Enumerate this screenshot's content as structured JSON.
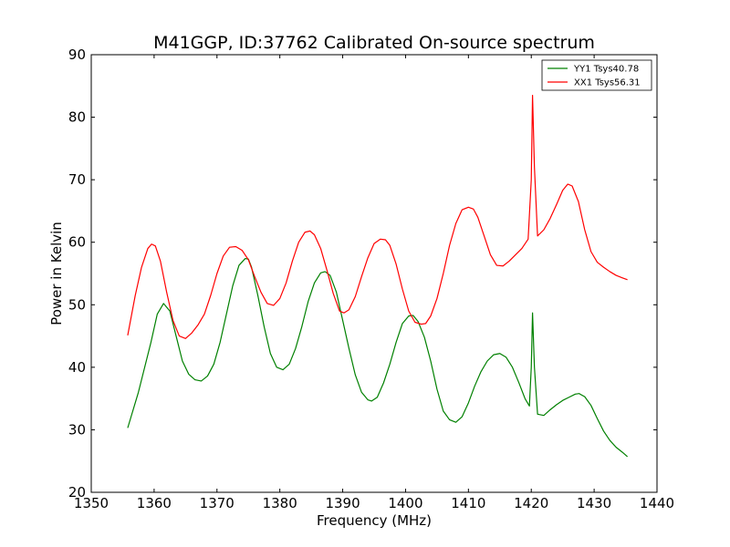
{
  "chart_data": {
    "type": "line",
    "title": "M41GGP, ID:37762 Calibrated On-source spectrum",
    "xlabel": "Frequency (MHz)",
    "ylabel": "Power in Kelvin",
    "xlim": [
      1350,
      1440
    ],
    "ylim": [
      20,
      90
    ],
    "xticks": [
      "1350",
      "1360",
      "1370",
      "1380",
      "1390",
      "1400",
      "1410",
      "1420",
      "1430",
      "1440"
    ],
    "yticks": [
      "20",
      "30",
      "40",
      "50",
      "60",
      "70",
      "80",
      "90"
    ],
    "grid": false,
    "legend_position": "top-right",
    "series": [
      {
        "name": "YY1 Tsys40.78",
        "color": "#008000",
        "x": [
          1355.8,
          1357.5,
          1359.5,
          1360.5,
          1361.5,
          1362.5,
          1363.5,
          1364.5,
          1365.5,
          1366.5,
          1367.5,
          1368.5,
          1369.5,
          1370.5,
          1371.5,
          1372.5,
          1373.5,
          1374.5,
          1375.0,
          1375.5,
          1376.5,
          1377.5,
          1378.5,
          1379.5,
          1380.5,
          1381.5,
          1382.5,
          1383.5,
          1384.5,
          1385.5,
          1386.5,
          1387.2,
          1388.0,
          1389.0,
          1390.0,
          1391.0,
          1392.0,
          1393.0,
          1394.0,
          1394.6,
          1395.5,
          1396.5,
          1397.5,
          1398.5,
          1399.5,
          1400.5,
          1401.2,
          1402.0,
          1403.0,
          1404.0,
          1405.0,
          1406.0,
          1407.0,
          1408.0,
          1409.0,
          1410.0,
          1411.0,
          1412.0,
          1413.0,
          1414.0,
          1415.0,
          1416.0,
          1417.0,
          1418.0,
          1419.0,
          1419.7,
          1420.0,
          1420.2,
          1420.5,
          1421.0,
          1422.0,
          1423.0,
          1424.0,
          1425.0,
          1426.0,
          1427.0,
          1427.6,
          1428.5,
          1429.5,
          1430.5,
          1431.5,
          1432.5,
          1433.5,
          1434.5,
          1435.3
        ],
        "values": [
          30.3,
          36.0,
          44.0,
          48.5,
          50.2,
          49.0,
          45.0,
          41.0,
          38.9,
          38.0,
          37.8,
          38.6,
          40.5,
          44.0,
          48.5,
          53.0,
          56.3,
          57.4,
          57.3,
          56.0,
          51.5,
          46.5,
          42.2,
          40.0,
          39.6,
          40.5,
          43.0,
          46.5,
          50.5,
          53.5,
          55.1,
          55.3,
          54.7,
          52.0,
          47.5,
          43.0,
          38.8,
          36.0,
          34.8,
          34.6,
          35.2,
          37.5,
          40.5,
          44.0,
          47.0,
          48.2,
          48.3,
          47.3,
          44.8,
          41.0,
          36.5,
          33.0,
          31.6,
          31.2,
          32.1,
          34.3,
          37.0,
          39.3,
          41.0,
          42.0,
          42.2,
          41.6,
          40.0,
          37.6,
          35.0,
          33.8,
          40.0,
          48.7,
          40.0,
          32.5,
          32.3,
          33.2,
          34.0,
          34.7,
          35.2,
          35.7,
          35.8,
          35.3,
          33.9,
          31.8,
          29.8,
          28.3,
          27.2,
          26.4,
          25.7
        ]
      },
      {
        "name": "XX1 Tsys56.31",
        "color": "#ff0000",
        "x": [
          1355.8,
          1357.0,
          1358.0,
          1359.0,
          1359.6,
          1360.2,
          1361.0,
          1362.0,
          1363.0,
          1364.0,
          1365.0,
          1366.0,
          1367.0,
          1368.0,
          1369.0,
          1370.0,
          1371.0,
          1372.0,
          1373.0,
          1374.0,
          1375.0,
          1376.0,
          1377.0,
          1378.0,
          1379.0,
          1380.0,
          1381.0,
          1382.0,
          1383.0,
          1384.0,
          1384.8,
          1385.5,
          1386.5,
          1387.5,
          1388.5,
          1389.5,
          1390.2,
          1391.0,
          1392.0,
          1393.0,
          1394.0,
          1395.0,
          1396.0,
          1396.8,
          1397.5,
          1398.5,
          1399.5,
          1400.5,
          1401.5,
          1402.5,
          1403.2,
          1404.0,
          1405.0,
          1406.0,
          1407.0,
          1408.0,
          1409.0,
          1410.0,
          1410.8,
          1411.5,
          1412.5,
          1413.5,
          1414.5,
          1415.5,
          1416.5,
          1417.5,
          1418.5,
          1419.5,
          1420.0,
          1420.2,
          1420.5,
          1421.0,
          1422.0,
          1423.0,
          1424.0,
          1425.0,
          1425.8,
          1426.5,
          1427.5,
          1428.5,
          1429.5,
          1430.5,
          1431.5,
          1432.5,
          1433.5,
          1434.5,
          1435.3
        ],
        "values": [
          45.1,
          51.5,
          56.0,
          59.0,
          59.7,
          59.4,
          57.0,
          52.0,
          47.5,
          45.0,
          44.6,
          45.5,
          46.8,
          48.5,
          51.5,
          55.0,
          57.8,
          59.2,
          59.3,
          58.7,
          57.2,
          54.5,
          52.0,
          50.2,
          49.9,
          51.0,
          53.5,
          57.0,
          60.0,
          61.6,
          61.8,
          61.2,
          59.0,
          55.5,
          51.8,
          49.0,
          48.7,
          49.2,
          51.3,
          54.5,
          57.5,
          59.8,
          60.5,
          60.4,
          59.5,
          56.5,
          52.5,
          49.0,
          47.2,
          46.9,
          47.0,
          48.2,
          51.0,
          55.0,
          59.5,
          63.0,
          65.2,
          65.6,
          65.3,
          64.0,
          61.0,
          58.0,
          56.3,
          56.2,
          57.0,
          58.0,
          59.0,
          60.5,
          70.0,
          83.5,
          72.0,
          61.0,
          62.0,
          63.8,
          66.0,
          68.3,
          69.3,
          69.0,
          66.5,
          62.0,
          58.5,
          56.8,
          56.0,
          55.3,
          54.7,
          54.3,
          54.0
        ]
      }
    ]
  }
}
